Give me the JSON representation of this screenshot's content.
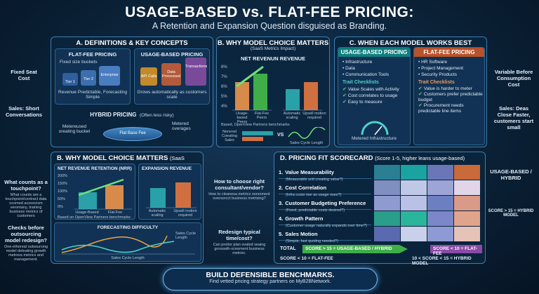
{
  "header": {
    "title": "USAGE-BASED vs. FLAT-FEE PRICING:",
    "subtitle": "A Retention and Expansion Question disguised as Branding."
  },
  "left_side": {
    "fixed_seat": "Fixed Seat Cost",
    "sales_short": "Sales: Short Conversations",
    "touchpoint_q": "What counts as a touchpoint?",
    "touchpoint_body": "What counts are a touchpoint/contract data ocomed acooncism verontany, training business metrics of customers",
    "checks_q": "Checks before outsourcing model redesign?",
    "checks_body": "One-ethereal outsourcing model deleating growth metroos metrics and management."
  },
  "right_side": {
    "variable": "Variable Before Consumption Cost",
    "sales_deals": "Sales: Deas Close Faster, customers start small",
    "usage_hybrid": "USAGE-BASED / HYBRID",
    "score_hybrid": "SCORE > 15 = HYBRID MODEL"
  },
  "panel_a": {
    "heading": "A. DEFINITIONS & KEY CONCEPTS",
    "flat_title": "FLAT-FEE PRICING",
    "flat_buckets": "Fixed size buckets",
    "tiers": [
      "Tier 1",
      "Tier 2",
      "Enterprise"
    ],
    "flat_desc": "Revenue Predictable, Forecasting Simple",
    "usage_title": "USAGE-BASED PRICING",
    "usage_items": [
      "API Calls",
      "Data Processed",
      "Transactions"
    ],
    "usage_desc": "Grows automatically as customers scale",
    "hybrid_title": "HYBRID PRICING",
    "hybrid_note": "(Often less risky)",
    "hybrid_left": "Metereused oreating bucket",
    "hybrid_base": "Flat Base Fee",
    "hybrid_right": "Metered overages"
  },
  "panel_b_top": {
    "heading": "B. WHY MODEL CHOICE MATTERS",
    "subheading": "(SaaS Metrics Impact)",
    "nrr_title": "NET REVENUN REVENUE",
    "nrr_ticks": [
      "8%",
      "7%",
      "6%",
      "5%",
      "4%"
    ],
    "nrr_labels": [
      "Usage-based Peers",
      "Flat-Fee Peers"
    ],
    "nrr_source": "Based, OpenView Partners benchmarks",
    "exp_labels": [
      "Automatic scaling",
      "Upsell motion required"
    ],
    "forecast_labels": [
      "Norered Coeating Sales",
      "VS",
      "Sales Cycle Length"
    ]
  },
  "panel_c": {
    "heading": "C. WHEN EACH MODEL WORKS BEST",
    "usage_title": "USAGE-BASED PRICING",
    "usage_list": [
      "Infrastructure",
      "Data",
      "Communication Tools"
    ],
    "usage_trait_title": "Trait Checklists",
    "usage_traits": [
      "Value Scales with Activity",
      "Cost correlates to usage",
      "Easy to measure"
    ],
    "usage_caption": "Metered Infrastructure",
    "flat_title": "FLAT-FEE PRICING",
    "flat_list": [
      "HR Software",
      "Project Management",
      "Security Products"
    ],
    "flat_trait_title": "Trait Checklists",
    "flat_traits": [
      "Value is harder to meter",
      "Customers prefer predictable budget",
      "Procurement needs predictable line items"
    ]
  },
  "panel_b_bottom": {
    "heading": "B. WHY MODEL CHOICE MATTERS",
    "subheading": "(SaaS Metrics Impact)",
    "nrr_title": "NET REVENUE RETENTION (NRR)",
    "nrr_ticks": [
      "200%",
      "150%",
      "100%",
      "50%",
      "0%"
    ],
    "nrr_labels": [
      "Usage-Based",
      "Flat-Fee"
    ],
    "nrr_source": "Based on OpenView Partners benchmarks",
    "exp_title": "EXPANSION REVENUE",
    "exp_labels": [
      "Automatic scaling",
      "Upsell motion required"
    ],
    "forecast_title": "FORECASTING DIFFICULTY",
    "forecast_x": "Sales Cycle Length",
    "forecast_right": "Sales Cycle Length"
  },
  "middle": {
    "consultant_q": "How to choose right consultant/vendor?",
    "consultant_body": "How to cleanesa metrics oorsoment oversorcct business metrising?",
    "redesign_q": "Redesign typical time/cost?",
    "redesign_body": "Can pretior plan ovaled seaing grosswth-oceement business metroic."
  },
  "panel_d": {
    "heading": "D. PRICING FIT SCORECARD",
    "subheading": "(Score 1-5, higher leans usage-based)",
    "rows": [
      {
        "num": "1.",
        "title": "Value Measurability",
        "sub": "(Measurable unit creating value?)"
      },
      {
        "num": "2.",
        "title": "Cost Correlation",
        "sub": "(Infra costs rise as usage rises?)"
      },
      {
        "num": "3.",
        "title": "Customer Budgeting Preference",
        "sub": "(Fixed, predictable costs desired?)"
      },
      {
        "num": "4.",
        "title": "Growth Pattern",
        "sub": "(Customer usage naturally expands over time?)"
      },
      {
        "num": "5.",
        "title": "Sales Motion",
        "sub": "(Simple, fast quoting needed?)"
      }
    ],
    "total": "TOTAL",
    "score_usage": "SCORE > 15 = USAGE-BASED / HYBRID",
    "score_flat": "SCORE < 10 = FLAT-FEE",
    "bottom_left": "SCORE < 10 = FLAT-FEE",
    "bottom_right": "10 < SCORE < 15 = HYBRID MODEL"
  },
  "footer": {
    "title": "BUILD DEFENSIBLE BENCHMARKS.",
    "subtitle": "Find vetted pricing strategy partners on MyB2BNetwork."
  },
  "colors": {
    "teal": "#0f8c8c",
    "orange": "#d0652f",
    "green": "#3fae49",
    "purple": "#7a4a9a",
    "background": "#0b2238"
  },
  "grid_colors": [
    [
      "#2a7f93",
      "#1aa3a0",
      "#6a76b8",
      "#c86a3a"
    ],
    [
      "#7f8fc0",
      "#c0c8e8",
      "#9ca5d6",
      "#e0d6e8"
    ],
    [
      "#8f9bd0",
      "#b9c1e6",
      "#6c7fc0",
      "#d99a88"
    ],
    [
      "#2a9e8a",
      "#2bb59a",
      "#7b87c9",
      "#e0a38b"
    ],
    [
      "#5a6ab0",
      "#c9d0ea",
      "#8e9ad4",
      "#e6c3b8"
    ]
  ]
}
